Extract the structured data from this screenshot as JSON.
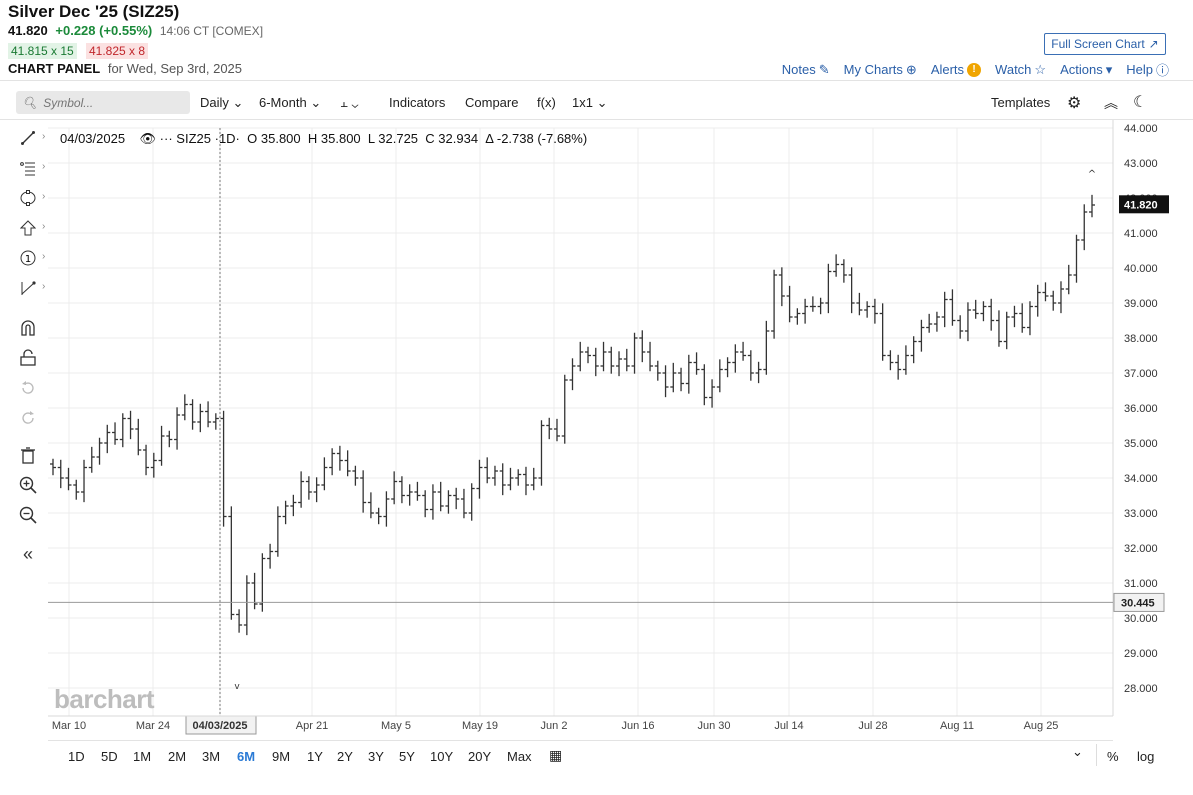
{
  "header": {
    "title": "Silver Dec '25 (SIZ25)",
    "last": "41.820",
    "change": "+0.228 (+0.55%)",
    "time": "14:06 CT [COMEX]",
    "bid": "41.815 x 15",
    "ask": "41.825 x 8",
    "panel_label": "CHART PANEL",
    "panel_date": "for Wed, Sep 3rd, 2025",
    "full_screen": "Full Screen Chart"
  },
  "actions": {
    "notes": "Notes",
    "my_charts": "My Charts",
    "alerts": "Alerts",
    "watch": "Watch",
    "actions": "Actions",
    "help": "Help"
  },
  "toolbar": {
    "symbol_placeholder": "Symbol...",
    "interval": "Daily",
    "period": "6-Month",
    "indicators": "Indicators",
    "compare": "Compare",
    "fx": "f(x)",
    "layout": "1x1",
    "templates": "Templates"
  },
  "legend": {
    "date": "04/03/2025",
    "symbol": "SIZ25",
    "interval": "·1D·",
    "o_label": "O",
    "o": "35.800",
    "h_label": "H",
    "h": "35.800",
    "l_label": "L",
    "l": "32.725",
    "c_label": "C",
    "c": "32.934",
    "chg": "Δ -2.738 (-7.68%)"
  },
  "watermark": "barchart",
  "ranges": [
    "1D",
    "5D",
    "1M",
    "2M",
    "3M",
    "6M",
    "9M",
    "1Y",
    "2Y",
    "3Y",
    "5Y",
    "10Y",
    "20Y",
    "Max"
  ],
  "range_active": "6M",
  "bottom_right": {
    "pct": "%",
    "log": "log"
  },
  "colors": {
    "accent": "#2a5fa8",
    "up": "#1b8a3a",
    "down": "#c0262b",
    "bars": "#333333"
  },
  "chart_data": {
    "type": "ohlc",
    "title": "",
    "xlabel": "",
    "ylabel": "",
    "y_ticks": [
      "44.000",
      "43.000",
      "42.000",
      "41.000",
      "40.000",
      "39.000",
      "38.000",
      "37.000",
      "36.000",
      "35.000",
      "34.000",
      "33.000",
      "32.000",
      "31.000",
      "30.000",
      "29.000",
      "28.000"
    ],
    "ylim": [
      27.3,
      44.2
    ],
    "x_ticks": [
      "Mar 10",
      "Mar 24",
      "04/03/2025",
      "Apr 21",
      "May 5",
      "May 19",
      "Jun 2",
      "Jun 16",
      "Jun 30",
      "Jul 14",
      "Jul 28",
      "Aug 11",
      "Aug 25"
    ],
    "last_price_label": "41.820",
    "crosshair_price_label": "30.445",
    "crosshair_date_label": "04/03/2025",
    "high_marker": "^",
    "low_marker": "v",
    "closes": [
      34.3,
      34.0,
      33.8,
      33.6,
      34.3,
      34.6,
      35.0,
      35.3,
      35.1,
      35.7,
      35.4,
      34.8,
      34.3,
      34.5,
      35.2,
      35.1,
      35.8,
      36.1,
      35.6,
      35.9,
      35.6,
      35.7,
      32.9,
      30.1,
      29.8,
      31.0,
      30.4,
      31.7,
      31.9,
      32.9,
      33.2,
      33.3,
      33.9,
      33.6,
      33.8,
      34.3,
      34.7,
      34.5,
      34.2,
      34.0,
      33.3,
      33.0,
      32.9,
      33.4,
      33.9,
      33.5,
      33.6,
      33.5,
      33.1,
      33.6,
      33.2,
      33.5,
      33.4,
      33.0,
      33.7,
      34.3,
      34.0,
      34.2,
      33.8,
      34.0,
      34.1,
      33.8,
      34.0,
      35.5,
      35.4,
      35.2,
      36.8,
      37.2,
      37.6,
      37.5,
      37.2,
      37.6,
      37.2,
      37.4,
      37.2,
      38.0,
      37.6,
      37.2,
      37.0,
      36.6,
      37.0,
      36.7,
      37.3,
      37.1,
      36.3,
      36.6,
      37.1,
      37.3,
      37.6,
      37.5,
      37.0,
      37.1,
      38.2,
      39.8,
      39.2,
      38.6,
      38.7,
      38.9,
      38.9,
      39.0,
      39.9,
      40.1,
      39.8,
      39.0,
      38.8,
      38.9,
      38.7,
      37.5,
      37.3,
      37.1,
      37.5,
      37.9,
      38.3,
      38.4,
      38.6,
      39.1,
      38.5,
      38.2,
      38.8,
      38.7,
      38.9,
      38.5,
      37.9,
      38.6,
      38.7,
      38.3,
      38.9,
      39.3,
      39.2,
      39.0,
      39.4,
      39.8,
      40.8,
      41.6,
      41.8
    ],
    "note": "bar values are approximate daily closes read from the chart"
  }
}
